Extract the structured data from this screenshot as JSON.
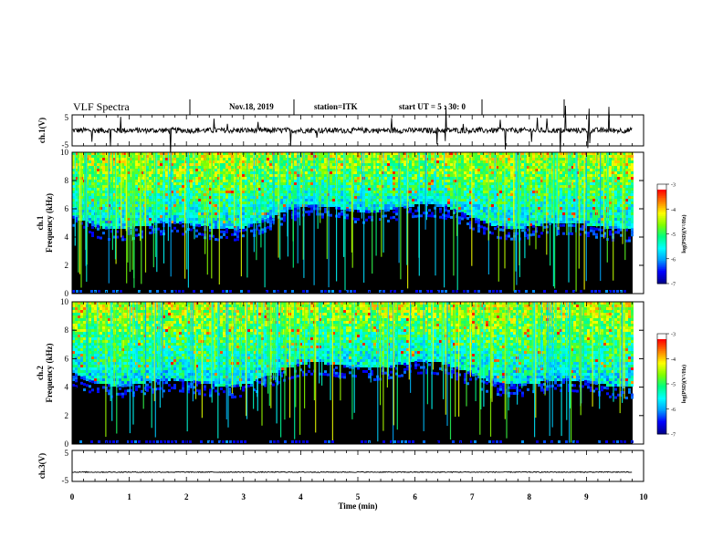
{
  "header": {
    "title": "VLF Spectra",
    "date": "Nov.18, 2019",
    "station": "station=ITK",
    "start": "start  UT =   5 : 30: 0"
  },
  "chart_data": [
    {
      "type": "line",
      "panel": "ch1-waveform",
      "ylabel": "ch.1(V)",
      "ylim": [
        -5,
        5
      ],
      "yticks": [
        "5",
        "-5"
      ],
      "xlim": [
        0,
        10
      ],
      "baseline": 0,
      "trace_span": [
        0,
        9.8
      ],
      "trace_color": "#000000"
    },
    {
      "type": "heatmap",
      "panel": "ch1-spectrogram",
      "ylabel": "ch.1",
      "ylabel2": "Frequency (kHz)",
      "ylim": [
        0,
        10
      ],
      "yticks": [
        "0",
        "2",
        "4",
        "6",
        "8",
        "10"
      ],
      "xlim": [
        0,
        10
      ],
      "data_span": [
        0,
        9.8
      ],
      "background_level": -7,
      "noise_floor_khz": 5.5,
      "colorbar": {
        "label": "log(PSD)(V²/Hz)",
        "ticks": [
          "-3",
          "-4",
          "-5",
          "-6",
          "-7"
        ],
        "range": [
          -7,
          -3
        ]
      }
    },
    {
      "type": "heatmap",
      "panel": "ch2-spectrogram",
      "ylabel": "ch.2",
      "ylabel2": "Frequency (kHz)",
      "ylim": [
        0,
        10
      ],
      "yticks": [
        "0",
        "2",
        "4",
        "6",
        "8",
        "10"
      ],
      "xlim": [
        0,
        10
      ],
      "data_span": [
        0,
        9.8
      ],
      "background_level": -7,
      "noise_floor_khz": 5.0,
      "colorbar": {
        "label": "log(PSD)(V²/Hz)",
        "ticks": [
          "-3",
          "-4",
          "-5",
          "-6",
          "-7"
        ],
        "range": [
          -7,
          -3
        ]
      }
    },
    {
      "type": "line",
      "panel": "ch3-waveform",
      "ylabel": "ch.3(V)",
      "ylim": [
        -5,
        5
      ],
      "yticks": [
        "5",
        "-5"
      ],
      "xlim": [
        0,
        10
      ],
      "baseline": -2,
      "trace_span": [
        0,
        9.8
      ],
      "xlabel": "Time  (min)",
      "xticks": [
        "0",
        "1",
        "2",
        "3",
        "4",
        "5",
        "6",
        "7",
        "8",
        "9",
        "10"
      ],
      "trace_color": "#000000"
    }
  ],
  "colors": {
    "colormap": [
      "#00008b",
      "#0000ff",
      "#00a0ff",
      "#00ffff",
      "#00ff80",
      "#80ff00",
      "#ffff00",
      "#ff8000",
      "#ff0000",
      "#ffffff"
    ],
    "background": "#000000"
  }
}
